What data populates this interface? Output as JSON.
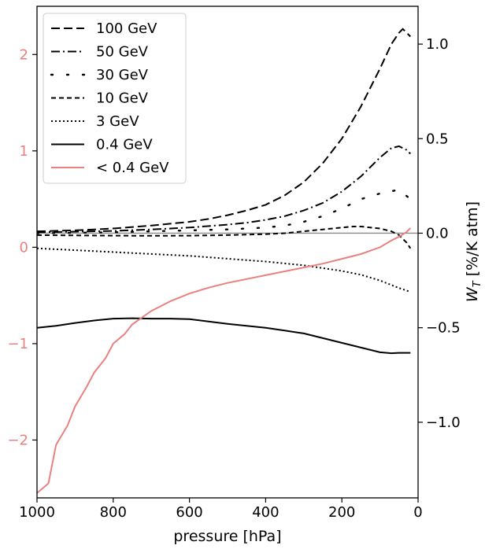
{
  "chart_data": {
    "type": "line",
    "xlabel": "pressure [hPa]",
    "xlim": [
      1000,
      0
    ],
    "x_ticks": [
      1000,
      800,
      600,
      400,
      200,
      0
    ],
    "left_axis": {
      "label": "",
      "ylim": [
        -2.6,
        2.5
      ],
      "ticks": [
        2,
        1,
        0,
        -1,
        -2
      ],
      "tick_labels": [
        "2",
        "1",
        "0",
        "−1",
        "−2"
      ],
      "color": "#e8817f"
    },
    "right_axis": {
      "label": "W_T [%/K atm]",
      "ylim": [
        -1.4,
        1.2
      ],
      "ticks": [
        1.0,
        0.5,
        0.0,
        -0.5,
        -1.0
      ],
      "tick_labels": [
        "1.0",
        "0.5",
        "0.0",
        "−0.5",
        "−1.0"
      ]
    },
    "zero_line": {
      "axis": "right",
      "y": 0.0,
      "color": "#888888"
    },
    "legend": {
      "placement": "top-left"
    },
    "series": [
      {
        "name": "100 GeV",
        "axis": "right",
        "color": "#000000",
        "style": "long-dash",
        "x": [
          1000,
          900,
          800,
          700,
          600,
          550,
          500,
          450,
          400,
          350,
          300,
          250,
          200,
          150,
          100,
          70,
          50,
          40,
          30,
          20
        ],
        "y": [
          0.01,
          0.015,
          0.025,
          0.04,
          0.06,
          0.075,
          0.095,
          0.12,
          0.15,
          0.2,
          0.27,
          0.37,
          0.5,
          0.67,
          0.87,
          1.0,
          1.06,
          1.08,
          1.06,
          1.04
        ]
      },
      {
        "name": "50 GeV",
        "axis": "right",
        "color": "#000000",
        "style": "dash-dot",
        "x": [
          1000,
          900,
          800,
          700,
          600,
          500,
          450,
          400,
          350,
          300,
          250,
          200,
          150,
          100,
          70,
          50,
          30,
          20
        ],
        "y": [
          0.005,
          0.008,
          0.012,
          0.02,
          0.03,
          0.045,
          0.055,
          0.07,
          0.09,
          0.12,
          0.16,
          0.22,
          0.3,
          0.4,
          0.45,
          0.46,
          0.44,
          0.42
        ]
      },
      {
        "name": "30 GeV",
        "axis": "right",
        "color": "#000000",
        "style": "sparse-dot",
        "x": [
          1000,
          900,
          800,
          700,
          600,
          500,
          400,
          350,
          300,
          250,
          200,
          150,
          100,
          50,
          20
        ],
        "y": [
          0.0,
          0.002,
          0.005,
          0.01,
          0.015,
          0.02,
          0.03,
          0.04,
          0.06,
          0.09,
          0.13,
          0.18,
          0.21,
          0.23,
          0.18
        ]
      },
      {
        "name": "10 GeV",
        "axis": "right",
        "color": "#000000",
        "style": "short-dash",
        "x": [
          1000,
          900,
          800,
          700,
          600,
          500,
          400,
          350,
          300,
          250,
          200,
          170,
          150,
          100,
          70,
          50,
          30,
          20
        ],
        "y": [
          -0.01,
          -0.012,
          -0.013,
          -0.014,
          -0.013,
          -0.01,
          -0.005,
          0.0,
          0.01,
          0.02,
          0.03,
          0.035,
          0.035,
          0.025,
          0.01,
          -0.01,
          -0.05,
          -0.08
        ]
      },
      {
        "name": "3 GeV",
        "axis": "right",
        "color": "#000000",
        "style": "dotted",
        "x": [
          1000,
          900,
          800,
          700,
          600,
          500,
          400,
          300,
          200,
          150,
          100,
          50,
          20
        ],
        "y": [
          -0.08,
          -0.09,
          -0.1,
          -0.11,
          -0.12,
          -0.135,
          -0.15,
          -0.17,
          -0.2,
          -0.22,
          -0.25,
          -0.29,
          -0.31
        ]
      },
      {
        "name": "0.4 GeV",
        "axis": "right",
        "color": "#000000",
        "style": "solid",
        "x": [
          1000,
          950,
          900,
          850,
          800,
          750,
          700,
          650,
          600,
          550,
          500,
          450,
          400,
          350,
          300,
          250,
          200,
          150,
          100,
          70,
          50,
          20
        ],
        "y": [
          -0.5,
          -0.49,
          -0.475,
          -0.462,
          -0.452,
          -0.45,
          -0.452,
          -0.452,
          -0.455,
          -0.467,
          -0.48,
          -0.49,
          -0.5,
          -0.515,
          -0.53,
          -0.555,
          -0.58,
          -0.605,
          -0.63,
          -0.635,
          -0.633,
          -0.633
        ]
      },
      {
        "name": "< 0.4 GeV",
        "axis": "left",
        "color": "#e8817f",
        "style": "solid",
        "x": [
          1000,
          970,
          950,
          920,
          900,
          870,
          850,
          820,
          800,
          770,
          750,
          700,
          650,
          600,
          550,
          500,
          450,
          400,
          350,
          300,
          250,
          200,
          150,
          100,
          70,
          50,
          30,
          20
        ],
        "y": [
          -2.55,
          -2.45,
          -2.05,
          -1.85,
          -1.65,
          -1.45,
          -1.3,
          -1.15,
          -1.0,
          -0.9,
          -0.8,
          -0.66,
          -0.56,
          -0.48,
          -0.42,
          -0.37,
          -0.33,
          -0.29,
          -0.25,
          -0.21,
          -0.17,
          -0.12,
          -0.07,
          0.0,
          0.07,
          0.11,
          0.16,
          0.2
        ]
      }
    ]
  }
}
